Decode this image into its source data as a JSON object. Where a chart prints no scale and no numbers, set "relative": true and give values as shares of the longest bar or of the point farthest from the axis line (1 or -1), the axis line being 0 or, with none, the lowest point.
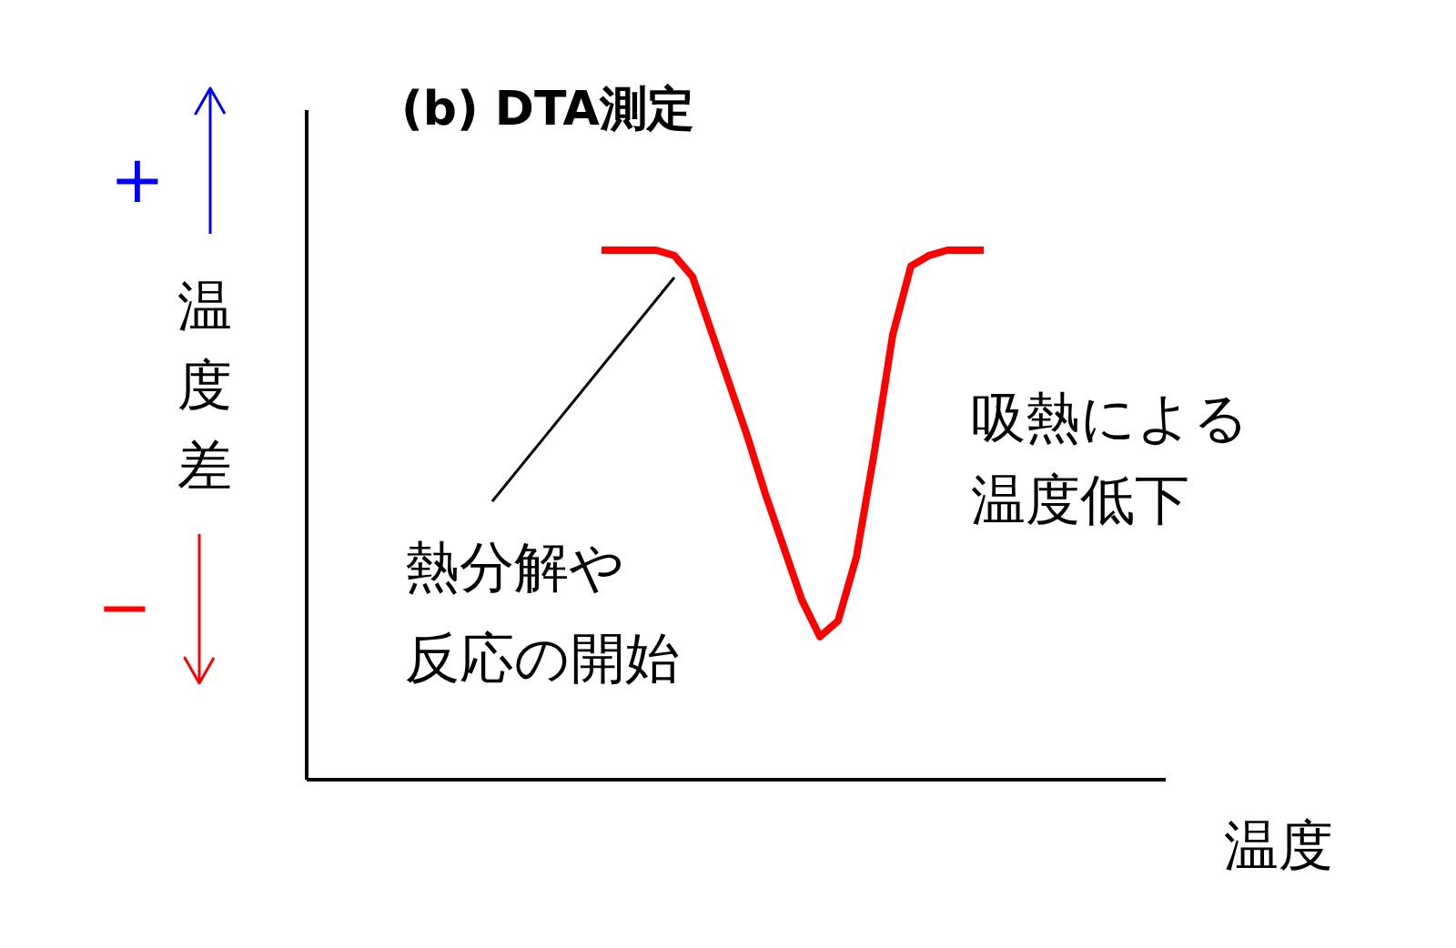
{
  "chart_data": {
    "type": "line",
    "title": "(b) DTA測定",
    "xlabel": "温度",
    "relative": true,
    "categories": [
      null,
      null,
      null,
      null,
      null,
      null,
      null,
      null,
      null,
      null,
      null,
      null,
      null,
      null,
      null,
      null,
      null,
      null,
      null,
      null,
      null,
      null
    ],
    "series": [
      {
        "color": "#ff0000",
        "values": [
          1.0,
          1.0,
          1.0,
          1.0,
          0.99,
          0.95,
          0.85,
          0.75,
          0.65,
          0.54,
          0.44,
          0.34,
          0.27,
          0.3,
          0.42,
          0.62,
          0.84,
          0.97,
          0.99,
          1.0,
          1.0,
          1.0
        ]
      }
    ],
    "annotations": [
      "熱分解や",
      "反応の開始",
      "吸熱による",
      "温度低下",
      "温度差",
      "+",
      "−"
    ],
    "grid": false,
    "marker": "none",
    "line_style": "solid"
  }
}
